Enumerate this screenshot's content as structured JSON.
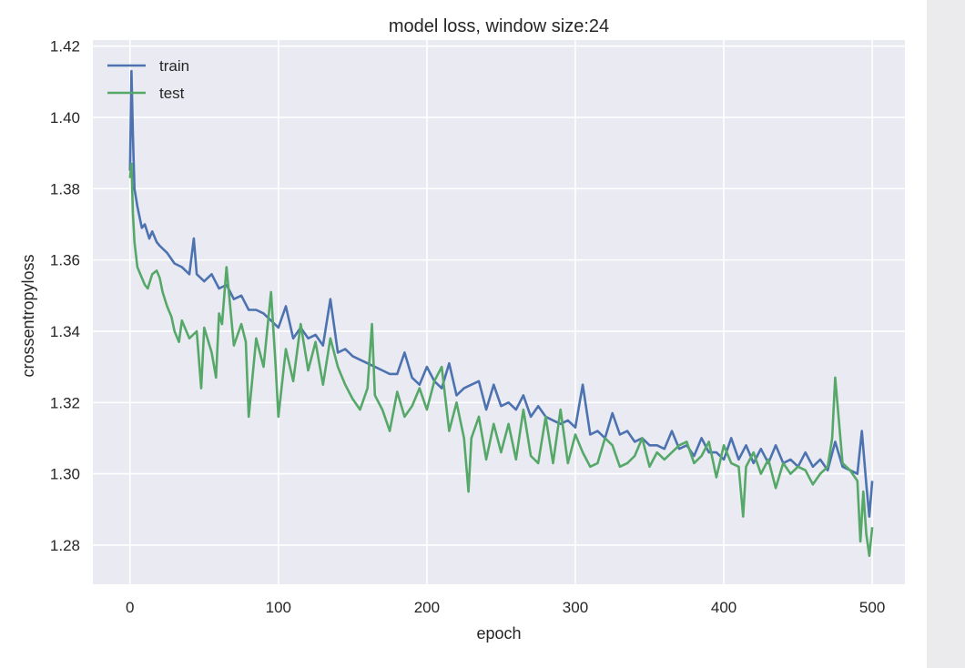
{
  "chart_data": {
    "type": "line",
    "title": "model loss, window size:24",
    "xlabel": "epoch",
    "ylabel": "crossentropyloss",
    "xlim": [
      -25,
      522
    ],
    "ylim": [
      1.269,
      1.4217
    ],
    "xticks": [
      0,
      100,
      200,
      300,
      400,
      500
    ],
    "yticks": [
      1.28,
      1.3,
      1.32,
      1.34,
      1.36,
      1.38,
      1.4,
      1.42
    ],
    "xtick_labels": [
      "0",
      "100",
      "200",
      "300",
      "400",
      "500"
    ],
    "ytick_labels": [
      "1.28",
      "1.30",
      "1.32",
      "1.34",
      "1.36",
      "1.38",
      "1.40",
      "1.42"
    ],
    "grid": true,
    "legend_position": "top-left",
    "series": [
      {
        "name": "train",
        "color": "#4c72b0",
        "x": [
          0,
          1,
          2,
          3,
          5,
          8,
          10,
          13,
          15,
          18,
          20,
          25,
          30,
          35,
          40,
          43,
          45,
          50,
          55,
          60,
          65,
          70,
          75,
          80,
          85,
          90,
          95,
          100,
          105,
          110,
          115,
          120,
          125,
          130,
          135,
          140,
          145,
          150,
          155,
          160,
          165,
          170,
          175,
          180,
          185,
          190,
          195,
          200,
          205,
          210,
          215,
          220,
          225,
          230,
          235,
          240,
          245,
          250,
          255,
          260,
          265,
          270,
          275,
          280,
          285,
          290,
          295,
          300,
          305,
          310,
          315,
          320,
          325,
          330,
          335,
          340,
          345,
          350,
          355,
          360,
          365,
          370,
          375,
          380,
          385,
          390,
          395,
          400,
          405,
          410,
          415,
          420,
          425,
          430,
          435,
          440,
          445,
          450,
          455,
          460,
          465,
          470,
          475,
          480,
          485,
          490,
          493,
          496,
          498,
          500
        ],
        "y": [
          1.385,
          1.413,
          1.395,
          1.38,
          1.375,
          1.369,
          1.37,
          1.366,
          1.368,
          1.365,
          1.364,
          1.362,
          1.359,
          1.358,
          1.356,
          1.366,
          1.356,
          1.354,
          1.356,
          1.352,
          1.353,
          1.349,
          1.35,
          1.346,
          1.346,
          1.345,
          1.343,
          1.341,
          1.347,
          1.338,
          1.341,
          1.338,
          1.339,
          1.336,
          1.349,
          1.334,
          1.335,
          1.333,
          1.332,
          1.331,
          1.33,
          1.329,
          1.328,
          1.328,
          1.334,
          1.327,
          1.325,
          1.33,
          1.326,
          1.324,
          1.331,
          1.322,
          1.324,
          1.325,
          1.326,
          1.318,
          1.325,
          1.319,
          1.32,
          1.318,
          1.322,
          1.316,
          1.319,
          1.316,
          1.315,
          1.314,
          1.315,
          1.313,
          1.325,
          1.311,
          1.312,
          1.31,
          1.317,
          1.311,
          1.312,
          1.309,
          1.31,
          1.308,
          1.308,
          1.307,
          1.312,
          1.307,
          1.308,
          1.305,
          1.31,
          1.306,
          1.306,
          1.304,
          1.31,
          1.304,
          1.308,
          1.303,
          1.307,
          1.303,
          1.308,
          1.303,
          1.304,
          1.302,
          1.306,
          1.302,
          1.304,
          1.301,
          1.309,
          1.302,
          1.301,
          1.3,
          1.312,
          1.297,
          1.288,
          1.298
        ]
      },
      {
        "name": "test",
        "color": "#55a868",
        "x": [
          0,
          1,
          2,
          3,
          5,
          8,
          10,
          12,
          15,
          18,
          20,
          22,
          25,
          28,
          30,
          33,
          35,
          40,
          45,
          48,
          50,
          55,
          58,
          60,
          62,
          65,
          70,
          75,
          78,
          80,
          85,
          90,
          95,
          98,
          100,
          105,
          110,
          115,
          120,
          125,
          130,
          135,
          140,
          145,
          150,
          155,
          160,
          163,
          165,
          170,
          175,
          180,
          185,
          190,
          195,
          200,
          205,
          210,
          215,
          220,
          225,
          228,
          230,
          235,
          240,
          245,
          250,
          255,
          260,
          265,
          270,
          275,
          280,
          285,
          290,
          295,
          300,
          305,
          310,
          315,
          320,
          325,
          330,
          335,
          340,
          345,
          350,
          355,
          360,
          365,
          370,
          375,
          380,
          385,
          390,
          395,
          400,
          405,
          410,
          413,
          415,
          420,
          425,
          430,
          435,
          440,
          445,
          450,
          455,
          460,
          465,
          470,
          473,
          475,
          480,
          485,
          490,
          492,
          494,
          496,
          498,
          500
        ],
        "y": [
          1.383,
          1.387,
          1.373,
          1.365,
          1.358,
          1.355,
          1.353,
          1.352,
          1.356,
          1.357,
          1.355,
          1.351,
          1.347,
          1.344,
          1.34,
          1.337,
          1.343,
          1.338,
          1.34,
          1.324,
          1.341,
          1.334,
          1.327,
          1.345,
          1.342,
          1.358,
          1.336,
          1.342,
          1.337,
          1.316,
          1.338,
          1.33,
          1.351,
          1.331,
          1.316,
          1.335,
          1.326,
          1.342,
          1.329,
          1.337,
          1.325,
          1.338,
          1.33,
          1.325,
          1.321,
          1.318,
          1.324,
          1.342,
          1.322,
          1.318,
          1.312,
          1.323,
          1.316,
          1.319,
          1.324,
          1.318,
          1.326,
          1.33,
          1.312,
          1.32,
          1.31,
          1.295,
          1.31,
          1.316,
          1.304,
          1.314,
          1.306,
          1.314,
          1.304,
          1.318,
          1.305,
          1.303,
          1.316,
          1.303,
          1.318,
          1.303,
          1.311,
          1.306,
          1.302,
          1.303,
          1.31,
          1.308,
          1.302,
          1.303,
          1.305,
          1.31,
          1.302,
          1.306,
          1.304,
          1.306,
          1.308,
          1.309,
          1.303,
          1.305,
          1.309,
          1.299,
          1.308,
          1.303,
          1.302,
          1.288,
          1.302,
          1.306,
          1.3,
          1.304,
          1.296,
          1.303,
          1.3,
          1.302,
          1.301,
          1.297,
          1.3,
          1.302,
          1.31,
          1.327,
          1.303,
          1.301,
          1.298,
          1.281,
          1.295,
          1.283,
          1.277,
          1.285
        ]
      }
    ]
  }
}
